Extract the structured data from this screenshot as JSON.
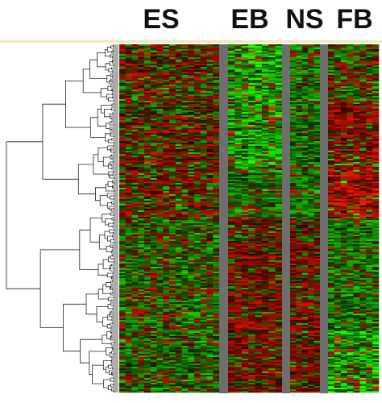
{
  "chart_data": {
    "type": "heatmap",
    "column_groups": [
      "ES",
      "EB",
      "NS",
      "FB"
    ]
  }
}
